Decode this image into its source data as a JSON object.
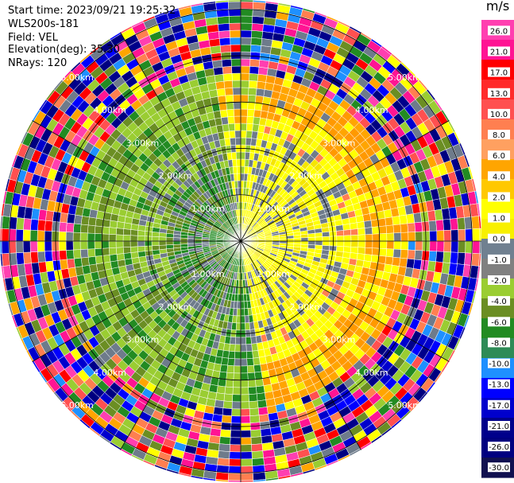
{
  "header": {
    "start_time": "Start time: 2023/09/21 19:25:32",
    "instrument": "WLS200s-181",
    "field": "Field: VEL",
    "elevation": "Elevation(deg): 35.30",
    "nrays": "NRays: 120"
  },
  "range_rings": [
    {
      "range_km": 1.0,
      "label": "1.00km"
    },
    {
      "range_km": 2.0,
      "label": "2.00km"
    },
    {
      "range_km": 3.0,
      "label": "3.00km"
    },
    {
      "range_km": 4.0,
      "label": "4.00km"
    },
    {
      "range_km": 5.0,
      "label": "5.00km"
    }
  ],
  "spokes_deg": [
    0,
    30,
    60,
    90,
    120,
    150,
    180,
    210,
    240,
    270,
    300,
    330
  ],
  "ring_label_azimuths_deg": [
    315,
    45,
    135,
    225
  ],
  "nrays": 120,
  "max_range_km": 5.2,
  "colorbar": {
    "unit": "m/s",
    "ticks": [
      "26.0",
      "21.0",
      "17.0",
      "13.0",
      "10.0",
      "8.0",
      "6.0",
      "4.0",
      "2.0",
      "1.0",
      "0.0",
      "-1.0",
      "-2.0",
      "-4.0",
      "-6.0",
      "-8.0",
      "-10.0",
      "-13.0",
      "-17.0",
      "-21.0",
      "-26.0",
      "-30.0"
    ],
    "colors": [
      "#ff3fb0",
      "#ff1493",
      "#ff0000",
      "#ff2a2a",
      "#ff5050",
      "#ff7f50",
      "#ffa060",
      "#ffa500",
      "#ffc800",
      "#ffff00",
      "#f8f000",
      "#708090",
      "#808080",
      "#9acd32",
      "#6b8e23",
      "#228b22",
      "#2e8b57",
      "#1e90ff",
      "#0000ff",
      "#0000cd",
      "#00008b",
      "#000080",
      "#101050"
    ]
  }
}
